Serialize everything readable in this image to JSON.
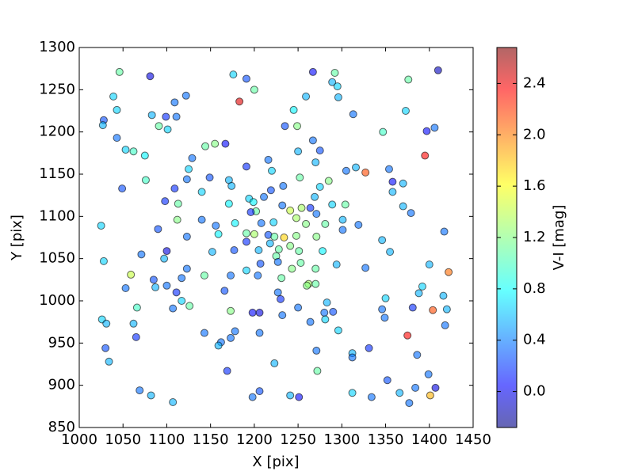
{
  "chart_data": {
    "type": "scatter",
    "xlabel": "X [pix]",
    "ylabel": "Y [pix]",
    "colorbar_label": "V-I [mag]",
    "colormap": "jet",
    "xlim": [
      1000,
      1450
    ],
    "ylim": [
      850,
      1300
    ],
    "xticks": [
      1000,
      1050,
      1100,
      1150,
      1200,
      1250,
      1300,
      1350,
      1400,
      1450
    ],
    "yticks": [
      850,
      900,
      950,
      1000,
      1050,
      1100,
      1150,
      1200,
      1250,
      1300
    ],
    "clim": [
      -0.28,
      2.68
    ],
    "cticks": [
      {
        "value": 0.0,
        "label": "0.0"
      },
      {
        "value": 0.4,
        "label": "0.4"
      },
      {
        "value": 0.8,
        "label": "0.8"
      },
      {
        "value": 1.2,
        "label": "1.2"
      },
      {
        "value": 1.6,
        "label": "1.6"
      },
      {
        "value": 2.0,
        "label": "2.0"
      },
      {
        "value": 2.4,
        "label": "2.4"
      }
    ],
    "x": [
      1046,
      1081,
      1176,
      1267,
      1292,
      1410,
      1191,
      1376,
      1289,
      1295,
      1200,
      1183,
      1039,
      1122,
      1109,
      1259,
      1296,
      1043,
      1245,
      1373,
      1028,
      1083,
      1099,
      1111,
      1313,
      1027,
      1091,
      1101,
      1235,
      1249,
      1397,
      1406,
      1347,
      1043,
      1267,
      1167,
      1155,
      1144,
      1053,
      1062,
      1075,
      1250,
      1275,
      1395,
      1129,
      1216,
      1270,
      1191,
      1316,
      1327,
      1305,
      1354,
      1125,
      1220,
      1149,
      1252,
      1123,
      1076,
      1171,
      1285,
      1358,
      1275,
      1049,
      1109,
      1174,
      1219,
      1370,
      1140,
      1358,
      1233,
      1194,
      1211,
      1269,
      1289,
      1304,
      1098,
      1113,
      1171,
      1199,
      1232,
      1370,
      1241,
      1254,
      1264,
      1202,
      1196,
      1271,
      1379,
      1248,
      1301,
      1222,
      1259,
      1140,
      1112,
      1156,
      1178,
      1208,
      1025,
      1281,
      1319,
      1301,
      1090,
      1159,
      1191,
      1200,
      1216,
      1223,
      1234,
      1248,
      1271,
      1417,
      1123,
      1346,
      1191,
      1218,
      1241,
      1228,
      1251,
      1205,
      1152,
      1177,
      1278,
      1355,
      1100,
      1071,
      1225,
      1028,
      1097,
      1207,
      1227,
      1253,
      1294,
      1400,
      1123,
      1191,
      1243,
      1270,
      1327,
      1422,
      1059,
      1143,
      1173,
      1204,
      1231,
      1117,
      1085,
      1262,
      1270,
      1260,
      1100,
      1087,
      1053,
      1392,
      1166,
      1111,
      1227,
      1388,
      1350,
      1230,
      1117,
      1416,
      1283,
      1126,
      1066,
      1107,
      1250,
      1381,
      1346,
      1420,
      1173,
      1198,
      1206,
      1280,
      1290,
      1404,
      1232,
      1349,
      1281,
      1026,
      1031,
      1062,
      1264,
      1418,
      1296,
      1143,
      1178,
      1206,
      1065,
      1173,
      1375,
      1162,
      1159,
      1030,
      1331,
      1271,
      1312,
      1386,
      1312,
      1034,
      1223,
      1399,
      1169,
      1272,
      1352,
      1069,
      1206,
      1312,
      1366,
      1384,
      1407,
      1401,
      1082,
      1198,
      1241,
      1251,
      1334,
      1377,
      1107
    ],
    "values": [
      1271,
      1266,
      1268,
      1271,
      1270,
      1273,
      1263,
      1262,
      1259,
      1254,
      1250,
      1236,
      1242,
      1243,
      1235,
      1242,
      1241,
      1226,
      1226,
      1225,
      1214,
      1220,
      1218,
      1218,
      1221,
      1208,
      1207,
      1203,
      1207,
      1207,
      1201,
      1205,
      1200,
      1193,
      1190,
      1186,
      1186,
      1183,
      1179,
      1177,
      1172,
      1177,
      1178,
      1172,
      1169,
      1167,
      1164,
      1159,
      1158,
      1152,
      1154,
      1156,
      1156,
      1154,
      1146,
      1146,
      1144,
      1143,
      1143,
      1142,
      1141,
      1135,
      1133,
      1133,
      1136,
      1131,
      1139,
      1129,
      1129,
      1136,
      1121,
      1123,
      1123,
      1114,
      1114,
      1118,
      1115,
      1115,
      1117,
      1113,
      1112,
      1107,
      1110,
      1110,
      1106,
      1105,
      1103,
      1104,
      1098,
      1096,
      1093,
      1091,
      1096,
      1096,
      1089,
      1092,
      1092,
      1089,
      1091,
      1090,
      1084,
      1085,
      1079,
      1080,
      1079,
      1078,
      1076,
      1075,
      1077,
      1076,
      1082,
      1076,
      1072,
      1070,
      1068,
      1065,
      1061,
      1059,
      1060,
      1058,
      1060,
      1059,
      1058,
      1059,
      1055,
      1053,
      1047,
      1050,
      1044,
      1046,
      1045,
      1043,
      1043,
      1038,
      1036,
      1038,
      1038,
      1039,
      1034,
      1031,
      1030,
      1030,
      1030,
      1027,
      1027,
      1025,
      1020,
      1020,
      1018,
      1018,
      1016,
      1015,
      1017,
      1012,
      1010,
      1010,
      1009,
      1003,
      1002,
      1000,
      1006,
      998,
      994,
      992,
      991,
      992,
      992,
      990,
      990,
      988,
      986,
      986,
      986,
      987,
      989,
      983,
      980,
      978,
      978,
      973,
      973,
      975,
      971,
      965,
      962,
      964,
      962,
      957,
      956,
      959,
      951,
      947,
      944,
      944,
      941,
      938,
      936,
      933,
      928,
      926,
      913,
      917,
      917,
      906,
      894,
      893,
      891,
      891,
      897,
      897,
      888,
      888,
      886,
      888,
      886,
      886,
      879,
      880
    ],
    "color_values": [
      1.1,
      0.0,
      0.7,
      0.1,
      1.1,
      -0.1,
      0.3,
      1.1,
      0.6,
      0.7,
      1.1,
      2.4,
      0.7,
      0.4,
      0.4,
      0.6,
      0.6,
      0.7,
      0.8,
      0.7,
      0.3,
      0.6,
      0.2,
      0.4,
      0.4,
      0.6,
      1.1,
      0.7,
      0.3,
      1.2,
      0.1,
      0.4,
      1.0,
      0.4,
      0.4,
      0.1,
      1.2,
      1.1,
      0.7,
      1.0,
      0.8,
      0.6,
      0.3,
      2.3,
      0.4,
      0.4,
      0.6,
      0.2,
      0.6,
      2.1,
      0.4,
      0.4,
      0.7,
      0.7,
      0.3,
      1.1,
      0.4,
      1.0,
      0.6,
      1.2,
      0.1,
      0.7,
      0.3,
      0.2,
      0.6,
      0.3,
      0.6,
      0.7,
      0.6,
      0.4,
      0.7,
      0.4,
      0.6,
      0.7,
      1.1,
      0.2,
      1.1,
      0.8,
      0.8,
      0.4,
      0.6,
      1.4,
      1.3,
      0.2,
      1.1,
      0.2,
      0.4,
      0.4,
      1.3,
      0.6,
      0.7,
      1.2,
      0.4,
      1.2,
      0.4,
      0.8,
      0.4,
      0.7,
      1.1,
      0.4,
      0.4,
      0.3,
      0.8,
      1.1,
      1.3,
      0.3,
      1.1,
      1.7,
      1.2,
      1.2,
      0.4,
      0.4,
      0.6,
      0.2,
      0.6,
      1.2,
      1.1,
      1.1,
      0.6,
      0.6,
      0.3,
      0.8,
      0.6,
      0.0,
      0.4,
      1.1,
      0.7,
      0.6,
      0.3,
      0.4,
      1.1,
      0.6,
      0.6,
      0.4,
      0.7,
      1.2,
      1.1,
      0.4,
      2.0,
      1.4,
      1.1,
      0.4,
      0.4,
      1.1,
      0.4,
      0.3,
      1.3,
      1.1,
      1.2,
      0.4,
      0.6,
      0.4,
      0.7,
      0.3,
      0.2,
      0.4,
      0.6,
      0.7,
      0.2,
      0.7,
      0.6,
      0.6,
      1.1,
      1.0,
      0.4,
      0.4,
      0.2,
      0.4,
      0.6,
      1.2,
      0.1,
      0.0,
      0.4,
      0.3,
      2.1,
      0.4,
      0.4,
      0.7,
      0.7,
      0.6,
      0.6,
      0.4,
      0.4,
      0.7,
      0.4,
      0.4,
      0.4,
      0.2,
      0.4,
      2.3,
      0.4,
      0.6,
      0.3,
      0.2,
      0.4,
      0.6,
      0.4,
      0.4,
      0.6,
      0.6,
      0.4,
      0.2,
      1.1,
      0.3,
      0.4,
      0.3,
      0.7,
      0.6,
      0.4,
      0.0,
      1.8,
      0.6,
      0.4,
      0.6,
      0.1,
      0.4,
      0.4,
      0.6
    ]
  }
}
